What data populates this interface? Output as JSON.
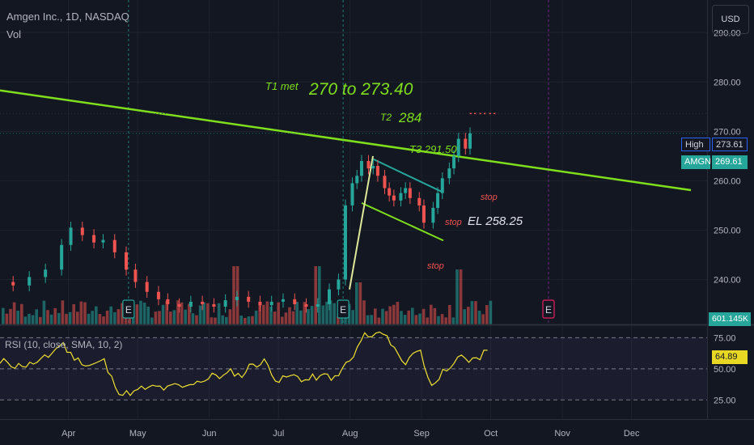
{
  "header": {
    "title": "Amgen Inc., 1D, NASDAQ",
    "volume_label": "Vol",
    "currency": "USD"
  },
  "price_axis": {
    "ticks": [
      "290.00",
      "280.00",
      "270.00",
      "260.00",
      "250.00",
      "240.00"
    ]
  },
  "rsi_axis": {
    "ticks": [
      "75.00",
      "50.00",
      "25.00"
    ]
  },
  "time_axis": {
    "labels": [
      "Apr",
      "May",
      "Jun",
      "Jul",
      "Aug",
      "Sep",
      "Oct",
      "Nov",
      "Dec"
    ]
  },
  "tags": {
    "high_label": "High",
    "high_value": "273.61",
    "symbol": "AMGN",
    "last_price": "269.61",
    "volume": "601.145K",
    "rsi_value": "64.89"
  },
  "rsi_legend": "RSI (10, close, SMA, 10, 2)",
  "earnings_marker": "E",
  "annotations": {
    "t1_label": "T1 met",
    "t1_target": "270 to 273.40",
    "t2_label": "T2",
    "t2_target": "284",
    "t3": "T3 291.50",
    "entry": "EL 258.25",
    "stop": "stop"
  },
  "colors": {
    "up": "#26a69a",
    "down": "#ef5350",
    "trendline": "#7fdf1c",
    "flag": "#26a69a",
    "rsi": "#f0e130",
    "background": "#131722"
  },
  "chart_data": {
    "type": "candlestick",
    "title": "Amgen Inc., 1D, NASDAQ",
    "ylim": [
      234,
      297
    ],
    "x_range": [
      "2023-03-01",
      "2023-12-31"
    ],
    "candles": [
      {
        "d": "2023-03-06",
        "o": 241.0,
        "c": 239.5
      },
      {
        "d": "2023-03-13",
        "o": 239.5,
        "c": 238.8
      },
      {
        "d": "2023-03-20",
        "o": 238.8,
        "c": 240.5
      },
      {
        "d": "2023-03-27",
        "o": 240.5,
        "c": 242.0
      },
      {
        "d": "2023-04-03",
        "o": 242.0,
        "c": 247.0
      },
      {
        "d": "2023-04-07",
        "o": 247.0,
        "c": 250.5
      },
      {
        "d": "2023-04-12",
        "o": 250.5,
        "c": 249.0
      },
      {
        "d": "2023-04-17",
        "o": 249.0,
        "c": 247.5
      },
      {
        "d": "2023-04-21",
        "o": 247.5,
        "c": 248.0
      },
      {
        "d": "2023-04-26",
        "o": 248.0,
        "c": 245.5
      },
      {
        "d": "2023-05-01",
        "o": 245.5,
        "c": 242.0
      },
      {
        "d": "2023-05-05",
        "o": 242.0,
        "c": 239.5
      },
      {
        "d": "2023-05-10",
        "o": 239.5,
        "c": 237.5
      },
      {
        "d": "2023-05-15",
        "o": 237.5,
        "c": 236.0
      },
      {
        "d": "2023-05-19",
        "o": 236.0,
        "c": 235.0
      },
      {
        "d": "2023-05-24",
        "o": 235.0,
        "c": 234.5
      },
      {
        "d": "2023-05-29",
        "o": 234.5,
        "c": 235.5
      },
      {
        "d": "2023-06-03",
        "o": 235.5,
        "c": 235.0
      },
      {
        "d": "2023-06-08",
        "o": 235.0,
        "c": 234.5
      },
      {
        "d": "2023-06-13",
        "o": 234.5,
        "c": 235.8
      },
      {
        "d": "2023-06-18",
        "o": 235.8,
        "c": 236.5
      },
      {
        "d": "2023-06-23",
        "o": 236.5,
        "c": 235.5
      },
      {
        "d": "2023-06-28",
        "o": 235.5,
        "c": 234.8
      },
      {
        "d": "2023-07-03",
        "o": 234.8,
        "c": 235.5
      },
      {
        "d": "2023-07-08",
        "o": 235.5,
        "c": 236.0
      },
      {
        "d": "2023-07-13",
        "o": 236.0,
        "c": 235.0
      },
      {
        "d": "2023-07-18",
        "o": 235.0,
        "c": 234.5
      },
      {
        "d": "2023-07-23",
        "o": 234.5,
        "c": 235.0
      },
      {
        "d": "2023-07-28",
        "o": 235.0,
        "c": 238.0
      },
      {
        "d": "2023-08-01",
        "o": 238.0,
        "c": 240.0
      },
      {
        "d": "2023-08-04",
        "o": 240.0,
        "c": 255.0
      },
      {
        "d": "2023-08-07",
        "o": 255.0,
        "c": 259.5
      },
      {
        "d": "2023-08-09",
        "o": 259.5,
        "c": 261.0
      },
      {
        "d": "2023-08-11",
        "o": 261.0,
        "c": 264.0
      },
      {
        "d": "2023-08-14",
        "o": 264.0,
        "c": 262.5
      },
      {
        "d": "2023-08-16",
        "o": 262.5,
        "c": 263.0
      },
      {
        "d": "2023-08-18",
        "o": 263.0,
        "c": 261.0
      },
      {
        "d": "2023-08-21",
        "o": 261.0,
        "c": 258.5
      },
      {
        "d": "2023-08-23",
        "o": 258.5,
        "c": 257.0
      },
      {
        "d": "2023-08-25",
        "o": 257.0,
        "c": 256.0
      },
      {
        "d": "2023-08-28",
        "o": 256.0,
        "c": 257.5
      },
      {
        "d": "2023-08-30",
        "o": 257.5,
        "c": 258.5
      },
      {
        "d": "2023-09-01",
        "o": 258.5,
        "c": 256.5
      },
      {
        "d": "2023-09-05",
        "o": 256.5,
        "c": 255.0
      },
      {
        "d": "2023-09-07",
        "o": 255.0,
        "c": 251.5
      },
      {
        "d": "2023-09-11",
        "o": 251.5,
        "c": 254.5
      },
      {
        "d": "2023-09-13",
        "o": 254.5,
        "c": 257.5
      },
      {
        "d": "2023-09-15",
        "o": 257.5,
        "c": 260.5
      },
      {
        "d": "2023-09-18",
        "o": 260.5,
        "c": 262.5
      },
      {
        "d": "2023-09-20",
        "o": 262.5,
        "c": 265.0
      },
      {
        "d": "2023-09-22",
        "o": 265.0,
        "c": 268.5
      },
      {
        "d": "2023-09-25",
        "o": 268.5,
        "c": 266.5
      },
      {
        "d": "2023-09-27",
        "o": 266.5,
        "c": 269.61
      }
    ],
    "rsi": {
      "name": "RSI (10, close, SMA, 10, 2)",
      "ylim": [
        15,
        85
      ],
      "bands": [
        75,
        50,
        25
      ],
      "last": 64.89
    }
  }
}
